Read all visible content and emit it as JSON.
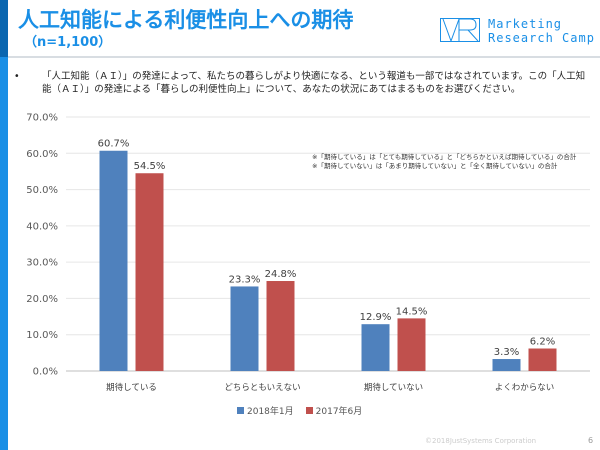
{
  "header": {
    "title": "人工知能による利便性向上への期待",
    "sample": "（n=1,100）",
    "logo_line1": "Marketing",
    "logo_line2": "Research Camp"
  },
  "question": {
    "bullet": "•",
    "text": "「人工知能（ＡＩ）」の発達によって、私たちの暮らしがより快適になる、という報道も一部ではなされています。この「人工知能（ＡＩ）」の発達による「暮らしの利便性向上」について、あなたの状況にあてはまるものをお選びください。"
  },
  "notes": [
    "※「期待している」は「とても期待している」と「どちらかといえば期待している」の合計",
    "※「期待していない」は「あまり期待していない」と「全く期待していない」の合計"
  ],
  "footer": {
    "copyright": "©2018JustSystems Corporation",
    "page": "6"
  },
  "chart_data": {
    "type": "bar",
    "categories": [
      "期待している",
      "どちらともいえない",
      "期待していない",
      "よくわからない"
    ],
    "series": [
      {
        "name": "2018年1月",
        "color": "#4f81bd",
        "values": [
          60.7,
          23.3,
          12.9,
          3.3
        ]
      },
      {
        "name": "2017年6月",
        "color": "#c0504d",
        "values": [
          54.5,
          24.8,
          14.5,
          6.2
        ]
      }
    ],
    "ylim": [
      0,
      70
    ],
    "yticks": [
      "0.0%",
      "10.0%",
      "20.0%",
      "30.0%",
      "40.0%",
      "50.0%",
      "60.0%",
      "70.0%"
    ],
    "grid": true,
    "legend": "bottom"
  }
}
